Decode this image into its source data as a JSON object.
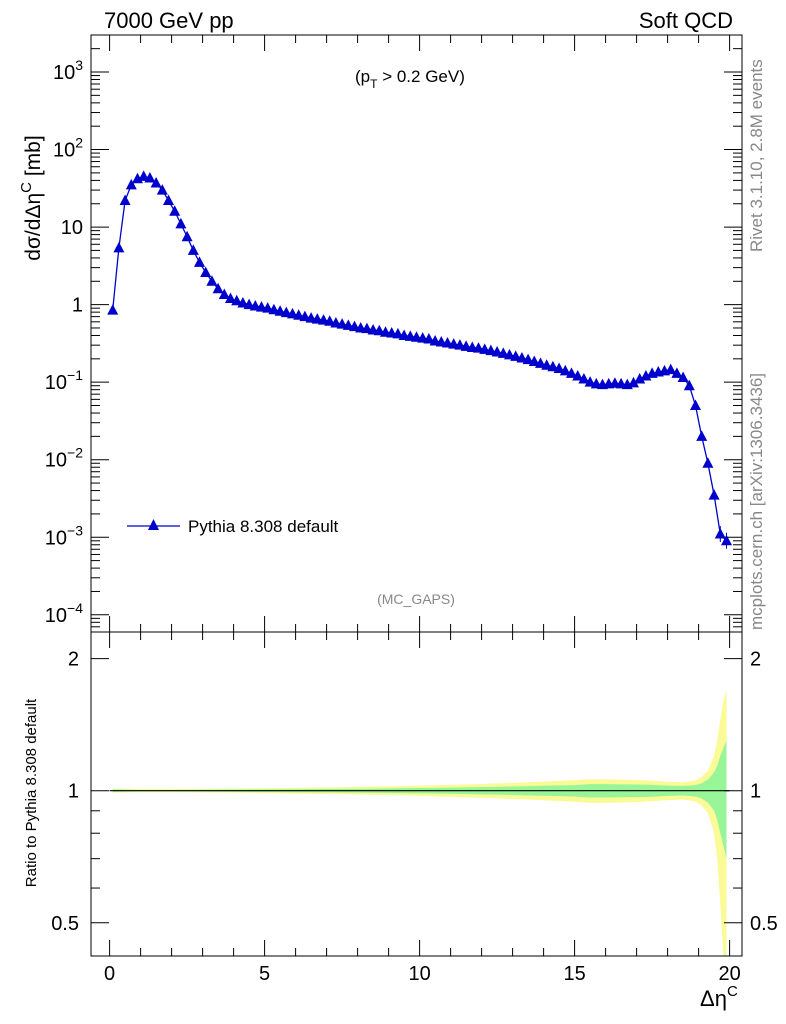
{
  "header": {
    "left": "7000 GeV pp",
    "right": "Soft QCD"
  },
  "side": {
    "top": "Rivet 3.1.10,  2.8M events",
    "bottom": "mcplots.cern.ch [arXiv:1306.3436]"
  },
  "chart_data": [
    {
      "type": "line",
      "scale_y": "log",
      "ylabel_main": "dσ/dΔη",
      "ylabel_sup": "C",
      "ylabel_unit": " [mb]",
      "annotation_main": "(p",
      "annotation_sub": "T",
      "annotation_rest": " > 0.2 GeV)",
      "footer": "(MC_GAPS)",
      "xlim": [
        -0.6,
        20.4
      ],
      "ylim": [
        6e-05,
        3000
      ],
      "yticks": [
        {
          "v": 0.0001,
          "b": "10",
          "e": "−4"
        },
        {
          "v": 0.001,
          "b": "10",
          "e": "−3"
        },
        {
          "v": 0.01,
          "b": "10",
          "e": "−2"
        },
        {
          "v": 0.1,
          "b": "10",
          "e": "−1"
        },
        {
          "v": 1,
          "b": "1",
          "e": ""
        },
        {
          "v": 10,
          "b": "10",
          "e": ""
        },
        {
          "v": 100,
          "b": "10",
          "e": "2"
        },
        {
          "v": 1000,
          "b": "10",
          "e": "3"
        }
      ],
      "legend": "top-left inside, below mid",
      "series": [
        {
          "name": "Pythia 8.308 default",
          "color": "#0000cc",
          "x": [
            0.1,
            0.3,
            0.5,
            0.7,
            0.9,
            1.1,
            1.3,
            1.5,
            1.7,
            1.9,
            2.1,
            2.3,
            2.5,
            2.7,
            2.9,
            3.1,
            3.3,
            3.5,
            3.7,
            3.9,
            4.1,
            4.3,
            4.5,
            4.7,
            4.9,
            5.1,
            5.3,
            5.5,
            5.7,
            5.9,
            6.1,
            6.3,
            6.5,
            6.7,
            6.9,
            7.1,
            7.3,
            7.5,
            7.7,
            7.9,
            8.1,
            8.3,
            8.5,
            8.7,
            8.9,
            9.1,
            9.3,
            9.5,
            9.7,
            9.9,
            10.1,
            10.3,
            10.5,
            10.7,
            10.9,
            11.1,
            11.3,
            11.5,
            11.7,
            11.9,
            12.1,
            12.3,
            12.5,
            12.7,
            12.9,
            13.1,
            13.3,
            13.5,
            13.7,
            13.9,
            14.1,
            14.3,
            14.5,
            14.7,
            14.9,
            15.1,
            15.3,
            15.5,
            15.7,
            15.9,
            16.1,
            16.3,
            16.5,
            16.7,
            16.9,
            17.1,
            17.3,
            17.5,
            17.7,
            17.9,
            18.1,
            18.3,
            18.5,
            18.7,
            18.9,
            19.1,
            19.3,
            19.5,
            19.7,
            19.9
          ],
          "y": [
            0.85,
            5.4,
            22,
            35,
            42,
            45,
            43,
            37,
            30,
            22,
            16,
            11,
            7.5,
            5,
            3.5,
            2.6,
            2.0,
            1.6,
            1.35,
            1.2,
            1.12,
            1.05,
            1.0,
            0.96,
            0.93,
            0.9,
            0.86,
            0.82,
            0.79,
            0.76,
            0.73,
            0.7,
            0.67,
            0.65,
            0.63,
            0.61,
            0.58,
            0.56,
            0.54,
            0.52,
            0.5,
            0.49,
            0.47,
            0.46,
            0.44,
            0.43,
            0.42,
            0.4,
            0.39,
            0.38,
            0.37,
            0.36,
            0.34,
            0.33,
            0.32,
            0.31,
            0.3,
            0.29,
            0.28,
            0.275,
            0.265,
            0.255,
            0.245,
            0.235,
            0.225,
            0.215,
            0.205,
            0.195,
            0.185,
            0.175,
            0.165,
            0.158,
            0.15,
            0.14,
            0.13,
            0.12,
            0.11,
            0.1,
            0.095,
            0.093,
            0.095,
            0.097,
            0.095,
            0.093,
            0.098,
            0.11,
            0.12,
            0.13,
            0.135,
            0.14,
            0.145,
            0.13,
            0.115,
            0.09,
            0.05,
            0.02,
            0.009,
            0.0035,
            0.0011,
            0.0009
          ]
        }
      ]
    },
    {
      "type": "area",
      "ylabel": "Ratio to Pythia 8.308 default",
      "xlabel_main": "Δη",
      "xlabel_sup": "C",
      "xlim": [
        -0.6,
        20.4
      ],
      "ylim": [
        0.42,
        2.3
      ],
      "xticks": [
        0,
        5,
        10,
        15,
        20
      ],
      "yticks": [
        0.5,
        1,
        2
      ],
      "band_colors": {
        "inner": "#98f598",
        "outer": "#fafa96"
      },
      "reference": 1,
      "series": [
        {
          "name": "Pythia 8.308 default",
          "x": [
            0.1,
            1,
            2,
            3,
            4,
            5,
            6,
            7,
            8,
            9,
            10,
            11,
            12,
            13,
            14,
            15,
            15.5,
            16,
            16.5,
            17,
            17.5,
            18,
            18.5,
            18.9,
            19.1,
            19.3,
            19.5,
            19.6,
            19.7,
            19.8,
            19.9
          ],
          "inner": [
            0.006,
            0.004,
            0.004,
            0.005,
            0.006,
            0.007,
            0.008,
            0.009,
            0.01,
            0.012,
            0.014,
            0.016,
            0.019,
            0.022,
            0.026,
            0.03,
            0.035,
            0.035,
            0.034,
            0.033,
            0.031,
            0.027,
            0.025,
            0.03,
            0.04,
            0.06,
            0.1,
            0.14,
            0.2,
            0.25,
            0.3
          ],
          "outer": [
            0.01,
            0.008,
            0.008,
            0.009,
            0.011,
            0.013,
            0.015,
            0.017,
            0.02,
            0.023,
            0.027,
            0.031,
            0.036,
            0.042,
            0.049,
            0.057,
            0.062,
            0.062,
            0.06,
            0.058,
            0.054,
            0.048,
            0.045,
            0.055,
            0.075,
            0.11,
            0.2,
            0.3,
            0.45,
            0.6,
            0.7
          ]
        }
      ]
    }
  ]
}
